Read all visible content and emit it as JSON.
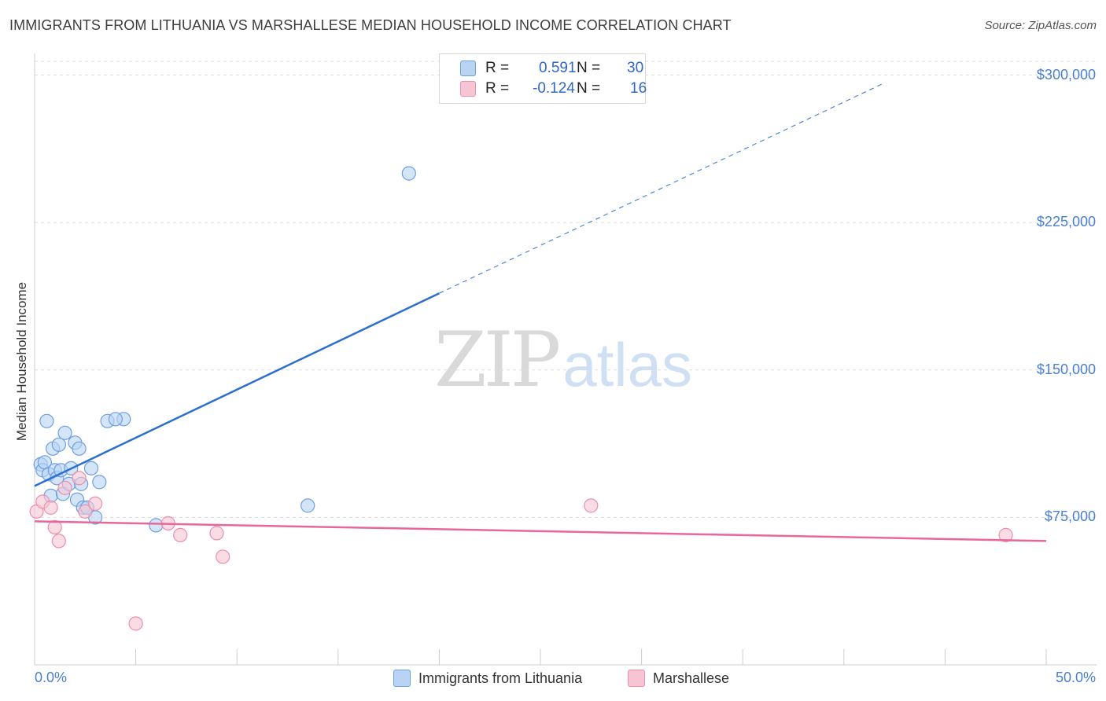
{
  "title": "IMMIGRANTS FROM LITHUANIA VS MARSHALLESE MEDIAN HOUSEHOLD INCOME CORRELATION CHART",
  "source": "Source: ZipAtlas.com",
  "watermark": {
    "zip": "ZIP",
    "atlas": "atlas"
  },
  "colors": {
    "blue_fill": "#b9d3f3",
    "blue_stroke": "#6e9fe0",
    "blue_line": "#2b6fcf",
    "pink_fill": "#f7c4d4",
    "pink_stroke": "#ea8fae",
    "pink_line": "#e8679a",
    "axis_text": "#4a7fd1",
    "grid": "#dddddd"
  },
  "legend": {
    "r_label": "R =",
    "n_label": "N =",
    "rows": [
      {
        "name": "Immigrants from Lithuania",
        "r": "0.591",
        "n": "30",
        "color": "blue"
      },
      {
        "name": "Marshallese",
        "r": "-0.124",
        "n": "16",
        "color": "pink"
      }
    ]
  },
  "chart_data": {
    "type": "scatter",
    "title": "IMMIGRANTS FROM LITHUANIA VS MARSHALLESE MEDIAN HOUSEHOLD INCOME CORRELATION CHART",
    "xlabel": "",
    "ylabel": "Median Household Income",
    "xlim": [
      0,
      50
    ],
    "ylim": [
      0,
      315000
    ],
    "x_tick_labels": [
      "0.0%",
      "50.0%"
    ],
    "y_ticks": [
      {
        "value": 75000,
        "label": "$75,000"
      },
      {
        "value": 150000,
        "label": "$150,000"
      },
      {
        "value": 225000,
        "label": "$225,000"
      },
      {
        "value": 300000,
        "label": "$300,000"
      }
    ],
    "grid": "horizontal dashed",
    "legend_placement": "top-center and bottom",
    "series": [
      {
        "name": "Immigrants from Lithuania",
        "color": "blue",
        "trend": {
          "x": [
            0,
            20
          ],
          "y": [
            91000,
            189000
          ],
          "dashed_to": [
            42,
            296000
          ]
        },
        "points": [
          [
            0.3,
            102000
          ],
          [
            0.4,
            99000
          ],
          [
            0.5,
            103000
          ],
          [
            0.6,
            124000
          ],
          [
            0.7,
            97000
          ],
          [
            0.8,
            86000
          ],
          [
            0.9,
            110000
          ],
          [
            1.0,
            99000
          ],
          [
            1.1,
            95000
          ],
          [
            1.2,
            112000
          ],
          [
            1.3,
            99000
          ],
          [
            1.4,
            87000
          ],
          [
            1.5,
            118000
          ],
          [
            1.7,
            92000
          ],
          [
            1.8,
            100000
          ],
          [
            2.0,
            113000
          ],
          [
            2.1,
            84000
          ],
          [
            2.2,
            110000
          ],
          [
            2.3,
            92000
          ],
          [
            2.4,
            80000
          ],
          [
            2.6,
            80000
          ],
          [
            2.8,
            100000
          ],
          [
            3.0,
            75000
          ],
          [
            3.2,
            93000
          ],
          [
            3.6,
            124000
          ],
          [
            4.4,
            125000
          ],
          [
            4.0,
            125000
          ],
          [
            6.0,
            71000
          ],
          [
            13.5,
            81000
          ],
          [
            18.5,
            250000
          ]
        ]
      },
      {
        "name": "Marshallese",
        "color": "pink",
        "trend": {
          "x": [
            0,
            50
          ],
          "y": [
            73000,
            63000
          ]
        },
        "points": [
          [
            0.1,
            78000
          ],
          [
            0.4,
            83000
          ],
          [
            0.8,
            80000
          ],
          [
            1.0,
            70000
          ],
          [
            1.2,
            63000
          ],
          [
            1.5,
            90000
          ],
          [
            2.2,
            95000
          ],
          [
            2.5,
            78000
          ],
          [
            3.0,
            82000
          ],
          [
            5.0,
            21000
          ],
          [
            6.6,
            72000
          ],
          [
            7.2,
            66000
          ],
          [
            9.0,
            67000
          ],
          [
            9.3,
            55000
          ],
          [
            27.5,
            81000
          ],
          [
            48.0,
            66000
          ]
        ]
      }
    ]
  }
}
